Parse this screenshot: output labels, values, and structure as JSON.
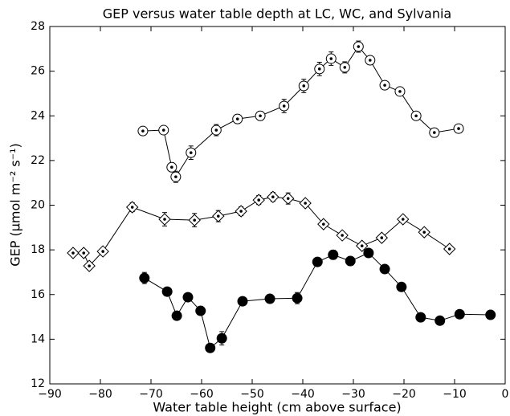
{
  "chart_data": {
    "type": "line",
    "title": "GEP versus water table depth at LC, WC, and Sylvania",
    "x_label": "Water table height (cm above surface)",
    "y_label": "GEP (μmol m⁻² s⁻¹)",
    "xlim": [
      -90,
      0
    ],
    "xticks": [
      {
        "value": -90,
        "label": "−90"
      },
      {
        "value": -80,
        "label": "−80"
      },
      {
        "value": -70,
        "label": "−70"
      },
      {
        "value": -60,
        "label": "−60"
      },
      {
        "value": -50,
        "label": "−50"
      },
      {
        "value": -40,
        "label": "−40"
      },
      {
        "value": -30,
        "label": "−30"
      },
      {
        "value": -20,
        "label": "−20"
      },
      {
        "value": -10,
        "label": "−10"
      },
      0
    ],
    "ylim": [
      12,
      28
    ],
    "yticks": [
      12,
      14,
      16,
      18,
      20,
      22,
      24,
      26,
      28
    ],
    "grid": false,
    "series": [
      {
        "color": "#000000",
        "marker": "circle-dot",
        "x": [
          -71.6,
          -67.5,
          -65.9,
          -65.1,
          -62.1,
          -57.1,
          -52.9,
          -48.4,
          -43.7,
          -39.8,
          -36.7,
          -34.4,
          -31.7,
          -29.0,
          -26.7,
          -23.8,
          -20.8,
          -17.6,
          -14.0,
          -9.2
        ],
        "values": [
          23.32,
          23.36,
          21.7,
          21.27,
          22.35,
          23.36,
          23.86,
          24.0,
          24.44,
          25.34,
          26.1,
          26.56,
          26.17,
          27.1,
          26.49,
          25.37,
          25.09,
          24.0,
          23.25,
          23.43
        ],
        "errors": [
          0.15,
          0.15,
          0.2,
          0.25,
          0.3,
          0.25,
          0.2,
          0.2,
          0.3,
          0.3,
          0.3,
          0.3,
          0.25,
          0.25,
          0.2,
          0.15,
          0.15,
          0.15,
          0.2,
          0.1
        ]
      },
      {
        "color": "#000000",
        "marker": "diamond-dot",
        "x": [
          -85.4,
          -83.3,
          -82.2,
          -79.5,
          -73.7,
          -67.3,
          -61.4,
          -56.7,
          -52.2,
          -48.7,
          -45.9,
          -42.9,
          -39.5,
          -35.9,
          -32.2,
          -28.3,
          -24.4,
          -20.2,
          -16.0,
          -11.0
        ],
        "values": [
          17.86,
          17.86,
          17.28,
          17.93,
          19.91,
          19.37,
          19.33,
          19.51,
          19.73,
          20.23,
          20.37,
          20.3,
          20.09,
          19.15,
          18.65,
          18.18,
          18.54,
          19.37,
          18.79,
          18.04
        ],
        "errors": [
          0.1,
          0.15,
          0.15,
          0.15,
          0.2,
          0.3,
          0.3,
          0.25,
          0.2,
          0.2,
          0.2,
          0.25,
          0.15,
          0.15,
          0.15,
          0.15,
          0.15,
          0.15,
          0.15,
          0.1
        ]
      },
      {
        "color": "#000000",
        "marker": "circle",
        "x": [
          -71.3,
          -66.8,
          -64.9,
          -62.7,
          -60.2,
          -58.3,
          -56.0,
          -51.9,
          -46.5,
          -41.1,
          -37.1,
          -34.0,
          -30.6,
          -27.0,
          -23.8,
          -20.5,
          -16.7,
          -12.9,
          -9.0,
          -2.9
        ],
        "values": [
          16.74,
          16.13,
          15.05,
          15.88,
          15.27,
          13.61,
          14.04,
          15.7,
          15.81,
          15.84,
          17.46,
          17.78,
          17.5,
          17.86,
          17.14,
          16.34,
          14.98,
          14.83,
          15.12,
          15.09
        ],
        "errors": [
          0.25,
          0.15,
          0.15,
          0.15,
          0.15,
          0.1,
          0.3,
          0.15,
          0.15,
          0.25,
          0.15,
          0.2,
          0.2,
          0.15,
          0.1,
          0.15,
          0.15,
          0.1,
          0.1,
          0.1
        ]
      }
    ]
  }
}
